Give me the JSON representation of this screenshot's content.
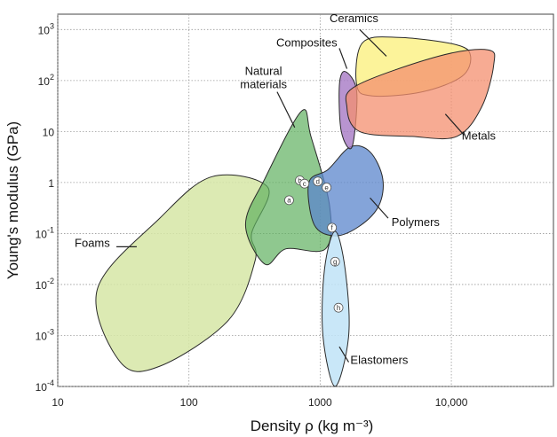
{
  "chart_data": {
    "type": "scatter",
    "title": "",
    "xlabel": "Density ρ (kg m⁻³)",
    "ylabel": "Young's modulus (GPa)",
    "x_scale": "log",
    "y_scale": "log",
    "xlim": [
      10,
      60000
    ],
    "ylim": [
      0.0001,
      2000
    ],
    "grid": true,
    "x_ticks": [
      {
        "value": 10,
        "label": "10"
      },
      {
        "value": 100,
        "label": "100"
      },
      {
        "value": 1000,
        "label": "1000"
      },
      {
        "value": 10000,
        "label": "10,000"
      }
    ],
    "y_ticks": [
      {
        "value": 1000,
        "base": "10",
        "exp": "3"
      },
      {
        "value": 100,
        "base": "10",
        "exp": "2"
      },
      {
        "value": 10,
        "base": "10",
        "exp": ""
      },
      {
        "value": 1,
        "base": "1",
        "exp": ""
      },
      {
        "value": 0.1,
        "base": "10",
        "exp": "-1"
      },
      {
        "value": 0.01,
        "base": "10",
        "exp": "-2"
      },
      {
        "value": 0.001,
        "base": "10",
        "exp": "-3"
      },
      {
        "value": 0.0001,
        "base": "10",
        "exp": "-4"
      }
    ],
    "families": [
      {
        "name": "Foams",
        "color": "#d6e6a6",
        "opacity": 0.85,
        "outline": [
          [
            300,
            0.1
          ],
          [
            400,
            0.8
          ],
          [
            150,
            1.3
          ],
          [
            60,
            0.2
          ],
          [
            20,
            0.008
          ],
          [
            30,
            0.0003
          ],
          [
            60,
            0.00025
          ],
          [
            200,
            0.002
          ],
          [
            320,
            0.03
          ]
        ],
        "label": {
          "x": 25,
          "y": 0.055,
          "anchor": "end"
        },
        "leader": [
          [
            28,
            0.055
          ],
          [
            40,
            0.055
          ]
        ]
      },
      {
        "name": "Natural materials",
        "color": "#5fb060",
        "opacity": 0.7,
        "outline": [
          [
            720,
            25
          ],
          [
            850,
            8
          ],
          [
            1180,
            0.35
          ],
          [
            1100,
            0.05
          ],
          [
            550,
            0.05
          ],
          [
            380,
            0.025
          ],
          [
            270,
            0.15
          ],
          [
            380,
            1.2
          ]
        ],
        "label": {
          "x": 370,
          "y": 130,
          "anchor": "middle",
          "lines": [
            "Natural",
            "materials"
          ]
        },
        "leader": [
          [
            470,
            60
          ],
          [
            640,
            12
          ]
        ]
      },
      {
        "name": "Polymers",
        "color": "#5b85cc",
        "opacity": 0.75,
        "outline": [
          [
            1150,
            1.8
          ],
          [
            1700,
            5
          ],
          [
            2400,
            4
          ],
          [
            3000,
            1.2
          ],
          [
            2800,
            0.35
          ],
          [
            2000,
            0.14
          ],
          [
            1300,
            0.09
          ],
          [
            900,
            0.15
          ],
          [
            820,
            1
          ]
        ],
        "label": {
          "x": 3500,
          "y": 0.14,
          "anchor": "start"
        },
        "leader": [
          [
            3300,
            0.2
          ],
          [
            2400,
            0.5
          ]
        ]
      },
      {
        "name": "Elastomers",
        "color": "#bfe3f7",
        "opacity": 0.85,
        "outline": [
          [
            1300,
            0.11
          ],
          [
            1550,
            0.02
          ],
          [
            1650,
            0.001
          ],
          [
            1300,
            0.0001
          ],
          [
            1050,
            0.001
          ],
          [
            1080,
            0.02
          ]
        ],
        "label": {
          "x": 1700,
          "y": 0.00028,
          "anchor": "start"
        },
        "leader": [
          [
            1650,
            0.0003
          ],
          [
            1400,
            0.0006
          ]
        ]
      },
      {
        "name": "Composites",
        "color": "#a679c4",
        "opacity": 0.8,
        "outline": [
          [
            1550,
            150
          ],
          [
            1900,
            60
          ],
          [
            1750,
            5
          ],
          [
            1450,
            10
          ],
          [
            1400,
            80
          ]
        ],
        "label": {
          "x": 1350,
          "y": 460,
          "anchor": "end"
        },
        "leader": [
          [
            1400,
            430
          ],
          [
            1600,
            170
          ]
        ]
      },
      {
        "name": "Ceramics",
        "color": "#fbf188",
        "opacity": 0.85,
        "outline": [
          [
            2100,
            550
          ],
          [
            4000,
            700
          ],
          [
            11000,
            500
          ],
          [
            14000,
            300
          ],
          [
            12000,
            120
          ],
          [
            6000,
            60
          ],
          [
            2500,
            50
          ],
          [
            1900,
            80
          ]
        ],
        "label": {
          "x": 1180,
          "y": 1400,
          "anchor": "start"
        },
        "leader": [
          [
            2000,
            1000
          ],
          [
            3200,
            300
          ]
        ]
      },
      {
        "name": "Metals",
        "color": "#f48f6f",
        "opacity": 0.75,
        "outline": [
          [
            1900,
            80
          ],
          [
            8000,
            300
          ],
          [
            19000,
            400
          ],
          [
            21000,
            200
          ],
          [
            17000,
            30
          ],
          [
            11000,
            8
          ],
          [
            5000,
            8
          ],
          [
            2000,
            10
          ],
          [
            1600,
            30
          ]
        ],
        "label": {
          "x": 12000,
          "y": 7,
          "anchor": "start"
        },
        "leader": [
          [
            12500,
            8.5
          ],
          [
            9000,
            22
          ]
        ]
      }
    ],
    "markers": [
      {
        "label": "a",
        "x": 580,
        "y": 0.45
      },
      {
        "label": "b",
        "x": 700,
        "y": 1.1
      },
      {
        "label": "c",
        "x": 760,
        "y": 0.95
      },
      {
        "label": "d",
        "x": 960,
        "y": 1.05
      },
      {
        "label": "e",
        "x": 1120,
        "y": 0.8
      },
      {
        "label": "f",
        "x": 1230,
        "y": 0.13
      },
      {
        "label": "g",
        "x": 1300,
        "y": 0.028
      },
      {
        "label": "h",
        "x": 1380,
        "y": 0.0035
      }
    ]
  }
}
